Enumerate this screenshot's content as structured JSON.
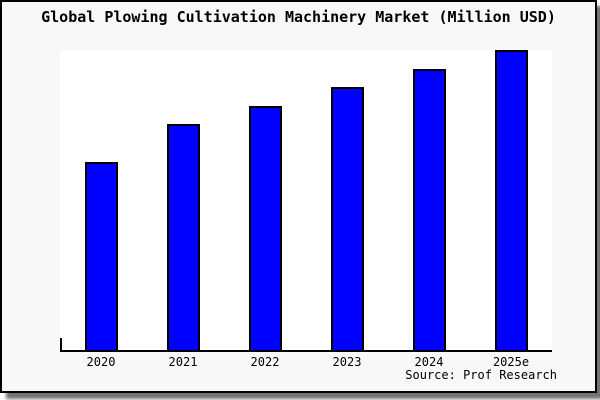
{
  "chart": {
    "title": "Global Plowing Cultivation Machinery Market (Million USD)",
    "source": "Source: Prof Research",
    "colors": {
      "bar_fill": "#0000ff",
      "bar_outline": "#000000",
      "plot_background": "#ffffff",
      "frame_background": "#f8f8f8",
      "frame_border": "#000000",
      "axis": "#000000"
    }
  },
  "chart_data": {
    "type": "bar",
    "title": "Global Plowing Cultivation Machinery Market (Million USD)",
    "categories": [
      "2020",
      "2021",
      "2022",
      "2023",
      "2024",
      "2025e"
    ],
    "values": [
      62.7,
      75.3,
      81.3,
      87.7,
      93.7,
      100
    ],
    "value_note": "No y-axis scale or data labels shown in the image; values are relative bar heights with the tallest (2025e) = 100.",
    "xlabel": "",
    "ylabel": "",
    "ylim": [
      0,
      100
    ],
    "grid": false,
    "legend": null,
    "source": "Source: Prof Research"
  }
}
